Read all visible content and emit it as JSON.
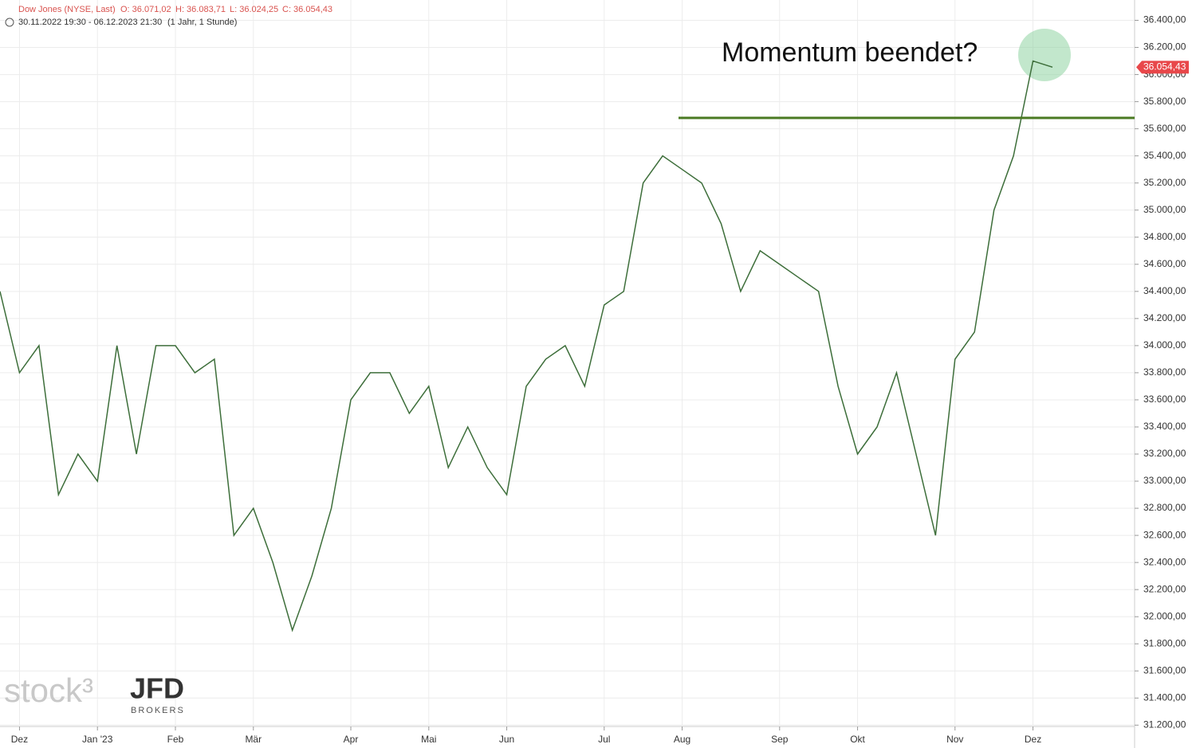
{
  "header": {
    "instrument": "Dow Jones (NYSE, Last)",
    "open": "O: 36.071,02",
    "high": "H: 36.083,71",
    "low": "L: 36.024,25",
    "close": "C: 36.054,43",
    "range": "30.11.2022 19:30 - 06.12.2023 21:30",
    "interval": "(1 Jahr, 1 Stunde)"
  },
  "watermark": {
    "brand": "stock³",
    "broker": "JFD",
    "broker_sub": "BROKERS"
  },
  "chart_data": {
    "type": "line",
    "annotation": "Momentum beendet?",
    "categories": [
      null,
      "Dez",
      null,
      null,
      null,
      "Jan '23",
      null,
      null,
      null,
      "Feb",
      null,
      null,
      null,
      "Mär",
      null,
      null,
      null,
      null,
      "Apr",
      null,
      null,
      null,
      "Mai",
      null,
      null,
      null,
      "Jun",
      null,
      null,
      null,
      null,
      "Jul",
      null,
      null,
      null,
      "Aug",
      null,
      null,
      null,
      null,
      "Sep",
      null,
      null,
      null,
      "Okt",
      null,
      null,
      null,
      null,
      "Nov",
      null,
      null,
      null,
      "Dez",
      null
    ],
    "series": [
      {
        "name": "Dow Jones",
        "color": "#3d6e3a",
        "values": [
          34400,
          33800,
          34000,
          32900,
          33200,
          33000,
          34000,
          33200,
          34000,
          34000,
          33800,
          33900,
          32600,
          32800,
          32400,
          31900,
          32300,
          32800,
          33600,
          33800,
          33800,
          33500,
          33700,
          33100,
          33400,
          33100,
          32900,
          33700,
          33900,
          34000,
          33700,
          34300,
          34400,
          35200,
          35400,
          35300,
          35200,
          34900,
          34400,
          34700,
          34600,
          34500,
          34400,
          33700,
          33200,
          33400,
          33800,
          33200,
          32600,
          33900,
          34100,
          35000,
          35400,
          36100,
          36054.43
        ],
        "value_labels": {
          "last": "36.054,43"
        }
      }
    ],
    "support": {
      "value": 35680,
      "color": "#4a7a22"
    },
    "ylim": [
      31190,
      36550
    ],
    "yticks": [
      {
        "value": 31200,
        "label": "31.200,00"
      },
      {
        "value": 31400,
        "label": "31.400,00"
      },
      {
        "value": 31600,
        "label": "31.600,00"
      },
      {
        "value": 31800,
        "label": "31.800,00"
      },
      {
        "value": 32000,
        "label": "32.000,00"
      },
      {
        "value": 32200,
        "label": "32.200,00"
      },
      {
        "value": 32400,
        "label": "32.400,00"
      },
      {
        "value": 32600,
        "label": "32.600,00"
      },
      {
        "value": 32800,
        "label": "32.800,00"
      },
      {
        "value": 33000,
        "label": "33.000,00"
      },
      {
        "value": 33200,
        "label": "33.200,00"
      },
      {
        "value": 33400,
        "label": "33.400,00"
      },
      {
        "value": 33600,
        "label": "33.600,00"
      },
      {
        "value": 33800,
        "label": "33.800,00"
      },
      {
        "value": 34000,
        "label": "34.000,00"
      },
      {
        "value": 34200,
        "label": "34.200,00"
      },
      {
        "value": 34400,
        "label": "34.400,00"
      },
      {
        "value": 34600,
        "label": "34.600,00"
      },
      {
        "value": 34800,
        "label": "34.800,00"
      },
      {
        "value": 35000,
        "label": "35.000,00"
      },
      {
        "value": 35200,
        "label": "35.200,00"
      },
      {
        "value": 35400,
        "label": "35.400,00"
      },
      {
        "value": 35600,
        "label": "35.600,00"
      },
      {
        "value": 35800,
        "label": "35.800,00"
      },
      {
        "value": 36000,
        "label": "36.000,00"
      },
      {
        "value": 36200,
        "label": "36.200,00"
      },
      {
        "value": 36400,
        "label": "36.400,00"
      }
    ],
    "grid": true
  }
}
